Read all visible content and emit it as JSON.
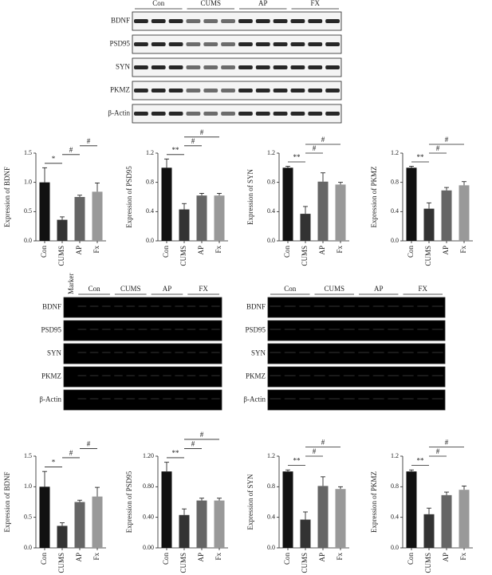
{
  "blots": [
    {
      "groups": [
        "Con",
        "CUMS",
        "AP",
        "FX"
      ],
      "rows": [
        "BDNF",
        "PSD95",
        "SYN",
        "PKMZ",
        "β-Actin"
      ]
    },
    {
      "marker": "Marker",
      "groups": [
        "Con",
        "CUMS",
        "AP",
        "FX"
      ],
      "rows": [
        "BDNF",
        "PSD95",
        "SYN",
        "PKMZ",
        "β-Actin"
      ]
    },
    {
      "groups": [
        "Con",
        "CUMS",
        "AP",
        "FX"
      ],
      "rows": [
        "BDNF",
        "PSD95",
        "SYN",
        "PKMZ",
        "β-Actin"
      ]
    }
  ],
  "chart_data": [
    {
      "type": "bar",
      "ylabel": "Expression of BDNF",
      "categories": [
        "Con",
        "CUMS",
        "AP",
        "Fx"
      ],
      "values": [
        1.0,
        0.36,
        0.75,
        0.84
      ],
      "errors": [
        0.25,
        0.05,
        0.03,
        0.15
      ],
      "colors": [
        "#111111",
        "#333333",
        "#666666",
        "#999999"
      ],
      "ylim": [
        0,
        1.5
      ],
      "yticks": [
        {
          "value": 0,
          "label": "0.0"
        },
        {
          "value": 0.5,
          "label": "0.5"
        },
        {
          "value": 1,
          "label": "1.0"
        },
        {
          "value": 1.5,
          "label": "1.5"
        }
      ],
      "annotations": [
        {
          "text": "*",
          "span": [
            0,
            1
          ]
        },
        {
          "text": "#",
          "span": [
            1,
            2
          ]
        },
        {
          "text": "#",
          "span": [
            2,
            3
          ]
        }
      ]
    },
    {
      "type": "bar",
      "ylabel": "Expression of PSD95",
      "categories": [
        "Con",
        "CUMS",
        "AP",
        "Fx"
      ],
      "values": [
        1.0,
        0.43,
        0.62,
        0.62
      ],
      "errors": [
        0.12,
        0.08,
        0.03,
        0.03
      ],
      "colors": [
        "#111111",
        "#333333",
        "#666666",
        "#999999"
      ],
      "ylim": [
        0,
        1.2
      ],
      "yticks": [
        {
          "value": 0,
          "label": "0.0"
        },
        {
          "value": 0.4,
          "label": "0.4"
        },
        {
          "value": 0.8,
          "label": "0.8"
        },
        {
          "value": 1.2,
          "label": "1.2"
        }
      ],
      "annotations": [
        {
          "text": "**",
          "span": [
            0,
            1
          ]
        },
        {
          "text": "#",
          "span": [
            1,
            2
          ]
        },
        {
          "text": "#",
          "span": [
            1,
            3
          ]
        }
      ]
    },
    {
      "type": "bar",
      "ylabel": "Expression of SYN",
      "categories": [
        "Con",
        "CUMS",
        "AP",
        "Fx"
      ],
      "values": [
        1.0,
        0.37,
        0.81,
        0.77
      ],
      "errors": [
        0.02,
        0.1,
        0.12,
        0.03
      ],
      "colors": [
        "#111111",
        "#333333",
        "#666666",
        "#999999"
      ],
      "ylim": [
        0,
        1.2
      ],
      "yticks": [
        {
          "value": 0,
          "label": "0.0"
        },
        {
          "value": 0.4,
          "label": "0.4"
        },
        {
          "value": 0.8,
          "label": "0.8"
        },
        {
          "value": 1.2,
          "label": "1.2"
        }
      ],
      "annotations": [
        {
          "text": "**",
          "span": [
            0,
            1
          ]
        },
        {
          "text": "#",
          "span": [
            1,
            2
          ]
        },
        {
          "text": "#",
          "span": [
            1,
            3
          ]
        }
      ]
    },
    {
      "type": "bar",
      "ylabel": "Expression of PKMZ",
      "categories": [
        "Con",
        "CUMS",
        "AP",
        "Fx"
      ],
      "values": [
        1.0,
        0.44,
        0.69,
        0.76
      ],
      "errors": [
        0.02,
        0.08,
        0.04,
        0.05
      ],
      "colors": [
        "#111111",
        "#333333",
        "#666666",
        "#999999"
      ],
      "ylim": [
        0,
        1.2
      ],
      "yticks": [
        {
          "value": 0,
          "label": "0.0"
        },
        {
          "value": 0.4,
          "label": "0.4"
        },
        {
          "value": 0.8,
          "label": "0.8"
        },
        {
          "value": 1.2,
          "label": "1.2"
        }
      ],
      "annotations": [
        {
          "text": "**",
          "span": [
            0,
            1
          ]
        },
        {
          "text": "#",
          "span": [
            1,
            2
          ]
        },
        {
          "text": "#",
          "span": [
            1,
            3
          ]
        }
      ]
    },
    {
      "type": "bar",
      "ylabel": "Expression of BDNF",
      "categories": [
        "Con",
        "CUMS",
        "AP",
        "Fx"
      ],
      "values": [
        1.0,
        0.36,
        0.75,
        0.84
      ],
      "errors": [
        0.25,
        0.05,
        0.03,
        0.15
      ],
      "colors": [
        "#111111",
        "#333333",
        "#666666",
        "#999999"
      ],
      "ylim": [
        0,
        1.5
      ],
      "yticks": [
        {
          "value": 0,
          "label": "0.0"
        },
        {
          "value": 0.5,
          "label": "0.5"
        },
        {
          "value": 1,
          "label": "1.0"
        },
        {
          "value": 1.5,
          "label": "1.5"
        }
      ],
      "annotations": [
        {
          "text": "*",
          "span": [
            0,
            1
          ]
        },
        {
          "text": "#",
          "span": [
            1,
            2
          ]
        },
        {
          "text": "#",
          "span": [
            2,
            3
          ]
        }
      ]
    },
    {
      "type": "bar",
      "ylabel": "Expression of PSD95",
      "categories": [
        "Con",
        "CUMS",
        "AP",
        "Fx"
      ],
      "values": [
        1.0,
        0.43,
        0.62,
        0.62
      ],
      "errors": [
        0.12,
        0.08,
        0.03,
        0.03
      ],
      "colors": [
        "#111111",
        "#333333",
        "#666666",
        "#999999"
      ],
      "ylim": [
        0,
        1.2
      ],
      "yticks": [
        {
          "value": 0,
          "label": "0.00"
        },
        {
          "value": 0.4,
          "label": "0.40"
        },
        {
          "value": 0.8,
          "label": "0.80"
        },
        {
          "value": 1.2,
          "label": "1.20"
        }
      ],
      "annotations": [
        {
          "text": "**",
          "span": [
            0,
            1
          ]
        },
        {
          "text": "#",
          "span": [
            1,
            2
          ]
        },
        {
          "text": "#",
          "span": [
            1,
            3
          ]
        }
      ]
    },
    {
      "type": "bar",
      "ylabel": "Expression of SYN",
      "categories": [
        "Con",
        "CUMS",
        "AP",
        "Fx"
      ],
      "values": [
        1.0,
        0.37,
        0.81,
        0.77
      ],
      "errors": [
        0.02,
        0.1,
        0.12,
        0.03
      ],
      "colors": [
        "#111111",
        "#333333",
        "#666666",
        "#999999"
      ],
      "ylim": [
        0,
        1.2
      ],
      "yticks": [
        {
          "value": 0,
          "label": "0.0"
        },
        {
          "value": 0.4,
          "label": "0.4"
        },
        {
          "value": 0.8,
          "label": "0.8"
        },
        {
          "value": 1.2,
          "label": "1.2"
        }
      ],
      "annotations": [
        {
          "text": "**",
          "span": [
            0,
            1
          ]
        },
        {
          "text": "#",
          "span": [
            1,
            2
          ]
        },
        {
          "text": "#",
          "span": [
            1,
            3
          ]
        }
      ]
    },
    {
      "type": "bar",
      "ylabel": "Expression of PKMZ",
      "categories": [
        "Con",
        "CUMS",
        "AP",
        "Fx"
      ],
      "values": [
        1.0,
        0.44,
        0.69,
        0.76
      ],
      "errors": [
        0.02,
        0.08,
        0.04,
        0.05
      ],
      "colors": [
        "#111111",
        "#333333",
        "#666666",
        "#999999"
      ],
      "ylim": [
        0,
        1.2
      ],
      "yticks": [
        {
          "value": 0,
          "label": "0.0"
        },
        {
          "value": 0.4,
          "label": "0.4"
        },
        {
          "value": 0.8,
          "label": "0.8"
        },
        {
          "value": 1.2,
          "label": "1.2"
        }
      ],
      "annotations": [
        {
          "text": "**",
          "span": [
            0,
            1
          ]
        },
        {
          "text": "#",
          "span": [
            1,
            2
          ]
        },
        {
          "text": "#",
          "span": [
            1,
            3
          ]
        }
      ]
    }
  ]
}
